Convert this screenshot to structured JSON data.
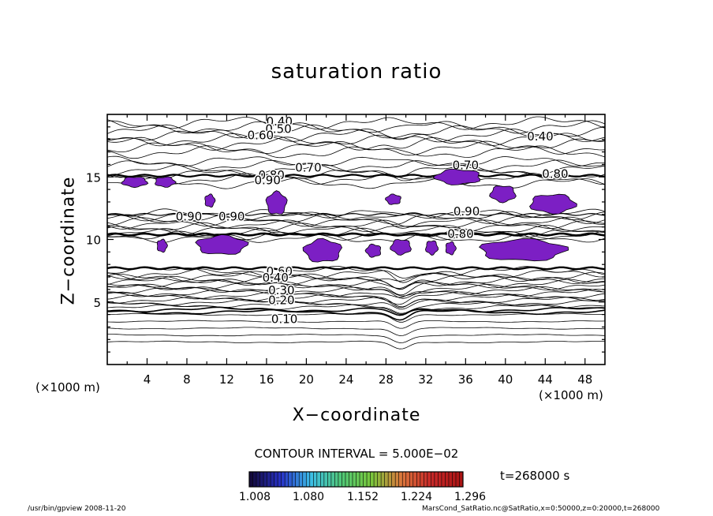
{
  "chart_data": {
    "type": "contour",
    "title": "saturation ratio",
    "xlabel": "X−coordinate",
    "ylabel": "Z−coordinate",
    "x_unit_label": "(×1000 m)",
    "y_unit_label": "(×1000 m)",
    "xlim": [
      0,
      50
    ],
    "ylim": [
      0,
      20
    ],
    "x_ticks": [
      4,
      8,
      12,
      16,
      20,
      24,
      28,
      32,
      36,
      40,
      44,
      48
    ],
    "y_ticks": [
      5,
      10,
      15
    ],
    "contour_interval_label": "CONTOUR INTERVAL = 5.000E−02",
    "contour_labels": [
      {
        "x": 17.3,
        "z": 19.5,
        "text": "0.40"
      },
      {
        "x": 17.2,
        "z": 18.9,
        "text": "0.50"
      },
      {
        "x": 15.4,
        "z": 18.4,
        "text": "0.60"
      },
      {
        "x": 43.5,
        "z": 18.3,
        "text": "0.40"
      },
      {
        "x": 20.2,
        "z": 15.8,
        "text": "0.70"
      },
      {
        "x": 16.5,
        "z": 15.2,
        "text": "0.80"
      },
      {
        "x": 16.1,
        "z": 14.8,
        "text": "0.90"
      },
      {
        "x": 36.0,
        "z": 16.0,
        "text": "0.70"
      },
      {
        "x": 45.0,
        "z": 15.3,
        "text": "0.80"
      },
      {
        "x": 8.2,
        "z": 11.9,
        "text": "0.90"
      },
      {
        "x": 12.5,
        "z": 11.9,
        "text": "0.90"
      },
      {
        "x": 36.1,
        "z": 12.3,
        "text": "0.90"
      },
      {
        "x": 35.5,
        "z": 10.5,
        "text": "0.80"
      },
      {
        "x": 17.3,
        "z": 7.5,
        "text": "0.60"
      },
      {
        "x": 16.9,
        "z": 7.0,
        "text": "0.40"
      },
      {
        "x": 17.5,
        "z": 6.0,
        "text": "0.30"
      },
      {
        "x": 17.5,
        "z": 5.2,
        "text": "0.20"
      },
      {
        "x": 17.8,
        "z": 3.7,
        "text": "0.10"
      }
    ],
    "shaded_regions_z": [
      {
        "x": [
          1.5,
          4.0
        ],
        "z": [
          14.2,
          15.0
        ]
      },
      {
        "x": [
          4.8,
          6.8
        ],
        "z": [
          14.2,
          15.0
        ]
      },
      {
        "x": [
          9.8,
          10.8
        ],
        "z": [
          12.6,
          13.6
        ]
      },
      {
        "x": [
          16.0,
          18.0
        ],
        "z": [
          12.0,
          13.8
        ]
      },
      {
        "x": [
          28.0,
          29.5
        ],
        "z": [
          12.8,
          13.6
        ]
      },
      {
        "x": [
          33.0,
          37.5
        ],
        "z": [
          14.4,
          15.6
        ]
      },
      {
        "x": [
          38.5,
          41.0
        ],
        "z": [
          13.0,
          14.3
        ]
      },
      {
        "x": [
          42.5,
          47.0
        ],
        "z": [
          12.1,
          13.6
        ]
      },
      {
        "x": [
          5.0,
          6.0
        ],
        "z": [
          9.0,
          10.0
        ]
      },
      {
        "x": [
          9.0,
          14.0
        ],
        "z": [
          8.8,
          10.3
        ]
      },
      {
        "x": [
          19.8,
          23.5
        ],
        "z": [
          8.2,
          10.0
        ]
      },
      {
        "x": [
          26.0,
          27.5
        ],
        "z": [
          8.6,
          9.6
        ]
      },
      {
        "x": [
          28.5,
          30.5
        ],
        "z": [
          8.8,
          10.0
        ]
      },
      {
        "x": [
          32.0,
          33.2
        ],
        "z": [
          8.8,
          9.9
        ]
      },
      {
        "x": [
          34.0,
          35.0
        ],
        "z": [
          8.8,
          9.8
        ]
      },
      {
        "x": [
          37.5,
          46.0
        ],
        "z": [
          8.3,
          10.0
        ]
      }
    ],
    "colorbar": {
      "ticks": [
        "1.008",
        "1.080",
        "1.152",
        "1.224",
        "1.296"
      ],
      "range": [
        1.008,
        1.296
      ]
    },
    "colors": {
      "shade": "#7c1fc4",
      "shade_deep": "#3b2fd8"
    }
  },
  "info": {
    "time": "t=268000 s",
    "footer_left": "/usr/bin/gpview   2008-11-20",
    "footer_right": "MarsCond_SatRatio.nc@SatRatio,x=0:50000,z=0:20000,t=268000"
  }
}
